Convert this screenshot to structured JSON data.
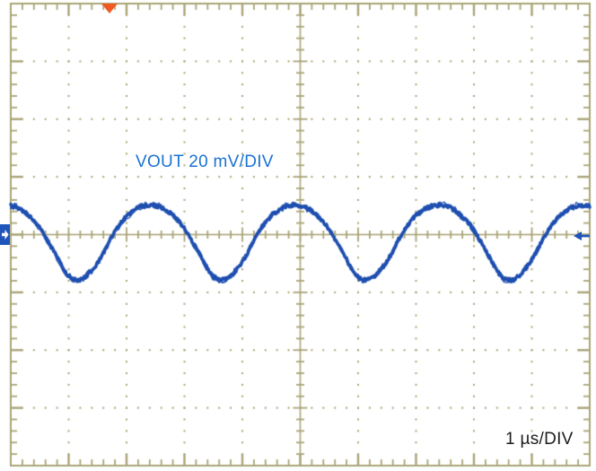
{
  "chart_data": {
    "type": "line",
    "instrument": "oscilloscope",
    "title": "",
    "divisions": {
      "x": 10,
      "y": 8
    },
    "minor_ticks_per_division": 5,
    "vertical_scale_mv_per_div": 20,
    "horizontal_scale_us_per_div": 1,
    "x_range_us": [
      0,
      10
    ],
    "y_range_mv": [
      -80,
      80
    ],
    "labels": {
      "channel": "VOUT 20 mV/DIV",
      "timebase": "1 µs/DIV"
    },
    "trigger": {
      "position_us": 1.71,
      "level_mv": 0
    },
    "channel_zero_offset_mv": 0,
    "waveform": {
      "name": "VOUT ripple",
      "period_us": 2.49,
      "first_valley_us": 1.13,
      "peak_mv": 10.2,
      "valley_mv": -15.7,
      "peak_to_peak_mv": 25.9,
      "noise_mv_pp": 2,
      "cycle_anchors": [
        [
          0.0,
          -15.7
        ],
        [
          0.045,
          -15.2
        ],
        [
          0.1,
          -12.8
        ],
        [
          0.17,
          -8.0
        ],
        [
          0.25,
          -0.5
        ],
        [
          0.33,
          5.2
        ],
        [
          0.41,
          8.6
        ],
        [
          0.47,
          9.9
        ],
        [
          0.53,
          10.2
        ],
        [
          0.6,
          9.2
        ],
        [
          0.67,
          6.6
        ],
        [
          0.74,
          2.8
        ],
        [
          0.81,
          -2.8
        ],
        [
          0.875,
          -8.5
        ],
        [
          0.935,
          -13.6
        ],
        [
          0.975,
          -15.3
        ],
        [
          1.0,
          -15.7
        ]
      ]
    },
    "colors": {
      "background": "#ffffff",
      "graticule": "#aba578",
      "trace": "#1e4fb0",
      "channel_label": "#1a73d2",
      "timebase_label": "#1c1c1c",
      "trigger_marker": "#f05a22",
      "channel_marker": "#1f55bb"
    }
  }
}
